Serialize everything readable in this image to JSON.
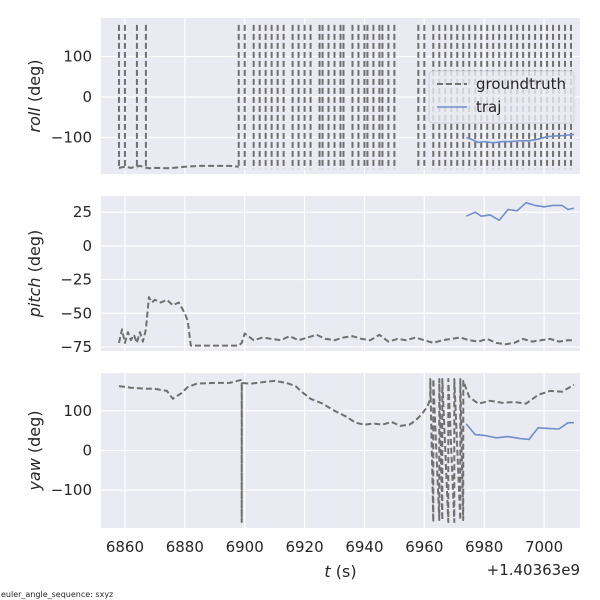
{
  "chart_data": [
    {
      "type": "line",
      "ylabel_italic": "roll",
      "ylabel_unit": " (deg)",
      "xlim": [
        6852,
        7012
      ],
      "ylim": [
        -190,
        195
      ],
      "yticks": [
        100,
        0,
        -100
      ],
      "ytick_labels": [
        "100",
        "0",
        "−100"
      ],
      "grid": true,
      "legend": {
        "placement": "right",
        "entries": [
          "groundtruth",
          "traj"
        ]
      },
      "series": [
        {
          "name": "groundtruth",
          "style": "dashed",
          "color": "#707070",
          "x": [
            6858,
            6860,
            6862,
            6865,
            6868,
            6870,
            6875,
            6880,
            6885,
            6890,
            6895,
            6898
          ],
          "y": [
            -175,
            -172,
            -175,
            -170,
            -176,
            -175,
            -176,
            -172,
            -170,
            -170,
            -170,
            -172
          ]
        },
        {
          "name": "traj",
          "style": "solid",
          "color": "#6f8fcb",
          "x": [
            6974,
            6976,
            6978,
            6980,
            6983,
            6986,
            6989,
            6992,
            6995,
            6998,
            7001,
            7004,
            7007,
            7010
          ],
          "y": [
            -100,
            -105,
            -112,
            -110,
            -113,
            -110,
            -110,
            -108,
            -108,
            -104,
            -98,
            -96,
            -95,
            -92
          ]
        }
      ],
      "switch_x": [
        6858,
        6860,
        6864,
        6867,
        6898,
        6900,
        6903,
        6905,
        6907,
        6909,
        6911,
        6913,
        6916,
        6918,
        6920,
        6922,
        6925,
        6926,
        6928,
        6930,
        6932,
        6933,
        6936,
        6938,
        6940,
        6941,
        6943,
        6945,
        6946,
        6948,
        6950,
        6958,
        6960,
        6963,
        6965,
        6967,
        6969,
        6971,
        6973,
        6975,
        6977,
        6979,
        6981,
        6983,
        6985,
        6987,
        6989,
        6991,
        6993,
        6995,
        6997,
        6999,
        7001,
        7003,
        7005,
        7007,
        7009
      ]
    },
    {
      "type": "line",
      "ylabel_italic": "pitch",
      "ylabel_unit": " (deg)",
      "xlim": [
        6852,
        7012
      ],
      "ylim": [
        -78,
        37
      ],
      "yticks": [
        25,
        0,
        -25,
        -50,
        -75
      ],
      "ytick_labels": [
        "25",
        "0",
        "−25",
        "−50",
        "−75"
      ],
      "grid": true,
      "series": [
        {
          "name": "groundtruth",
          "style": "dashed",
          "color": "#707070",
          "x": [
            6858,
            6859,
            6860,
            6861,
            6862,
            6863,
            6864,
            6865,
            6866,
            6867,
            6868,
            6869,
            6870,
            6872,
            6874,
            6876,
            6878,
            6880,
            6881,
            6882,
            6885,
            6890,
            6895,
            6898,
            6899,
            6900,
            6903,
            6906,
            6909,
            6912,
            6915,
            6918,
            6921,
            6924,
            6927,
            6930,
            6933,
            6936,
            6939,
            6942,
            6945,
            6948,
            6951,
            6954,
            6957,
            6960,
            6963,
            6966,
            6969,
            6972,
            6975,
            6978,
            6981,
            6984,
            6987,
            6990,
            6993,
            6996,
            6999,
            7002,
            7005,
            7008,
            7010
          ],
          "y": [
            -72,
            -62,
            -72,
            -64,
            -70,
            -66,
            -72,
            -64,
            -71,
            -62,
            -38,
            -42,
            -40,
            -42,
            -40,
            -44,
            -42,
            -50,
            -56,
            -74,
            -74,
            -74,
            -74,
            -74,
            -72,
            -65,
            -70,
            -68,
            -69,
            -70,
            -67,
            -70,
            -68,
            -66,
            -69,
            -70,
            -68,
            -67,
            -69,
            -70,
            -66,
            -71,
            -69,
            -70,
            -68,
            -70,
            -72,
            -70,
            -69,
            -68,
            -70,
            -71,
            -69,
            -72,
            -73,
            -72,
            -69,
            -71,
            -70,
            -69,
            -71,
            -70,
            -70
          ]
        },
        {
          "name": "traj",
          "style": "solid",
          "color": "#6f8fcb",
          "x": [
            6974,
            6977,
            6979,
            6982,
            6985,
            6988,
            6991,
            6994,
            6997,
            7000,
            7003,
            7006,
            7008,
            7010
          ],
          "y": [
            22,
            25,
            22,
            23,
            19,
            27,
            26,
            32,
            30,
            29,
            30,
            30,
            27,
            28
          ]
        }
      ]
    },
    {
      "type": "line",
      "ylabel_italic": "yaw",
      "ylabel_unit": " (deg)",
      "xlim": [
        6852,
        7012
      ],
      "ylim": [
        -195,
        195
      ],
      "yticks": [
        100,
        0,
        -100
      ],
      "ytick_labels": [
        "100",
        "0",
        "−100"
      ],
      "xticks": [
        6860,
        6880,
        6900,
        6920,
        6940,
        6960,
        6980,
        7000
      ],
      "xlabel_italic": "t",
      "xlabel_unit": " (s)",
      "offset_text": "+1.40363e9",
      "grid": true,
      "series": [
        {
          "name": "groundtruth",
          "style": "dashed",
          "color": "#707070",
          "x": [
            6858,
            6862,
            6866,
            6870,
            6874,
            6876,
            6879,
            6881,
            6884,
            6890,
            6895,
            6899,
            6899.01,
            6899.02,
            6902,
            6906,
            6910,
            6914,
            6917,
            6919,
            6922,
            6926,
            6930,
            6934,
            6937,
            6940,
            6943,
            6946,
            6949,
            6952,
            6955,
            6957,
            6959,
            6961,
            6962.0,
            6962.01,
            6963,
            6963.01,
            6965,
            6965.01,
            6966,
            6966.01,
            6968,
            6968.01,
            6970,
            6970.01,
            6972,
            6972.01,
            6973,
            6973.01,
            6975,
            6978,
            6982,
            6986,
            6990,
            6994,
            6998,
            7002,
            7006,
            7010
          ],
          "y": [
            162,
            158,
            156,
            155,
            150,
            130,
            145,
            160,
            168,
            170,
            170,
            178,
            -180,
            170,
            168,
            172,
            175,
            170,
            162,
            148,
            130,
            118,
            100,
            85,
            70,
            65,
            68,
            65,
            72,
            62,
            65,
            75,
            90,
            110,
            130,
            180,
            -180,
            180,
            -175,
            180,
            -175,
            180,
            -180,
            180,
            -180,
            180,
            -175,
            180,
            -175,
            175,
            135,
            118,
            125,
            120,
            122,
            118,
            140,
            150,
            148,
            165
          ]
        },
        {
          "name": "traj",
          "style": "solid",
          "color": "#6f8fcb",
          "x": [
            6974,
            6977,
            6980,
            6984,
            6988,
            6992,
            6995,
            6998,
            7002,
            7005,
            7008,
            7010
          ],
          "y": [
            67,
            40,
            38,
            32,
            35,
            30,
            28,
            57,
            55,
            54,
            70,
            70
          ]
        }
      ]
    }
  ],
  "footnote": "euler_angle_sequence: sxyz"
}
